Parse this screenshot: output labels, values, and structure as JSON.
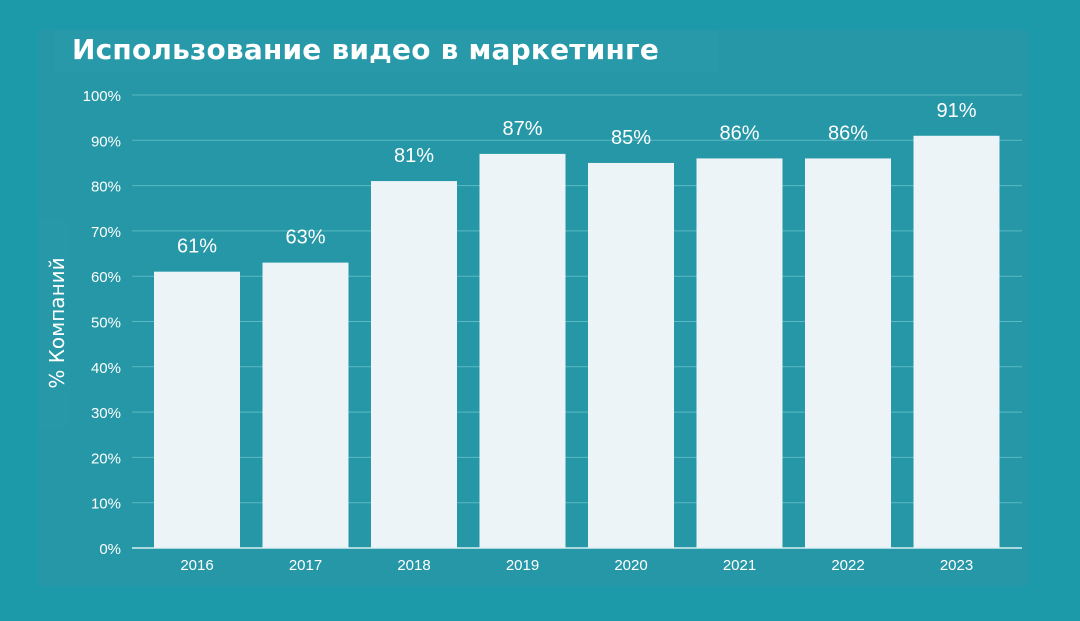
{
  "chart_data": {
    "type": "bar",
    "title": "Использование видео в маркетинге",
    "xlabel": "",
    "ylabel": "% Компаний",
    "categories": [
      "2016",
      "2017",
      "2018",
      "2019",
      "2020",
      "2021",
      "2022",
      "2023"
    ],
    "values": [
      61,
      63,
      81,
      87,
      85,
      86,
      86,
      91
    ],
    "data_labels": [
      "61%",
      "63%",
      "81%",
      "87%",
      "85%",
      "86%",
      "86%",
      "91%"
    ],
    "yticks": [
      "0%",
      "10%",
      "20%",
      "30%",
      "40%",
      "50%",
      "60%",
      "70%",
      "80%",
      "90%",
      "100%"
    ],
    "ylim": [
      0,
      100
    ],
    "grid": true,
    "legend": "none",
    "colors": {
      "background": "#1d9aa9",
      "bar": "#ecf4f8",
      "text": "#ffffff"
    }
  }
}
